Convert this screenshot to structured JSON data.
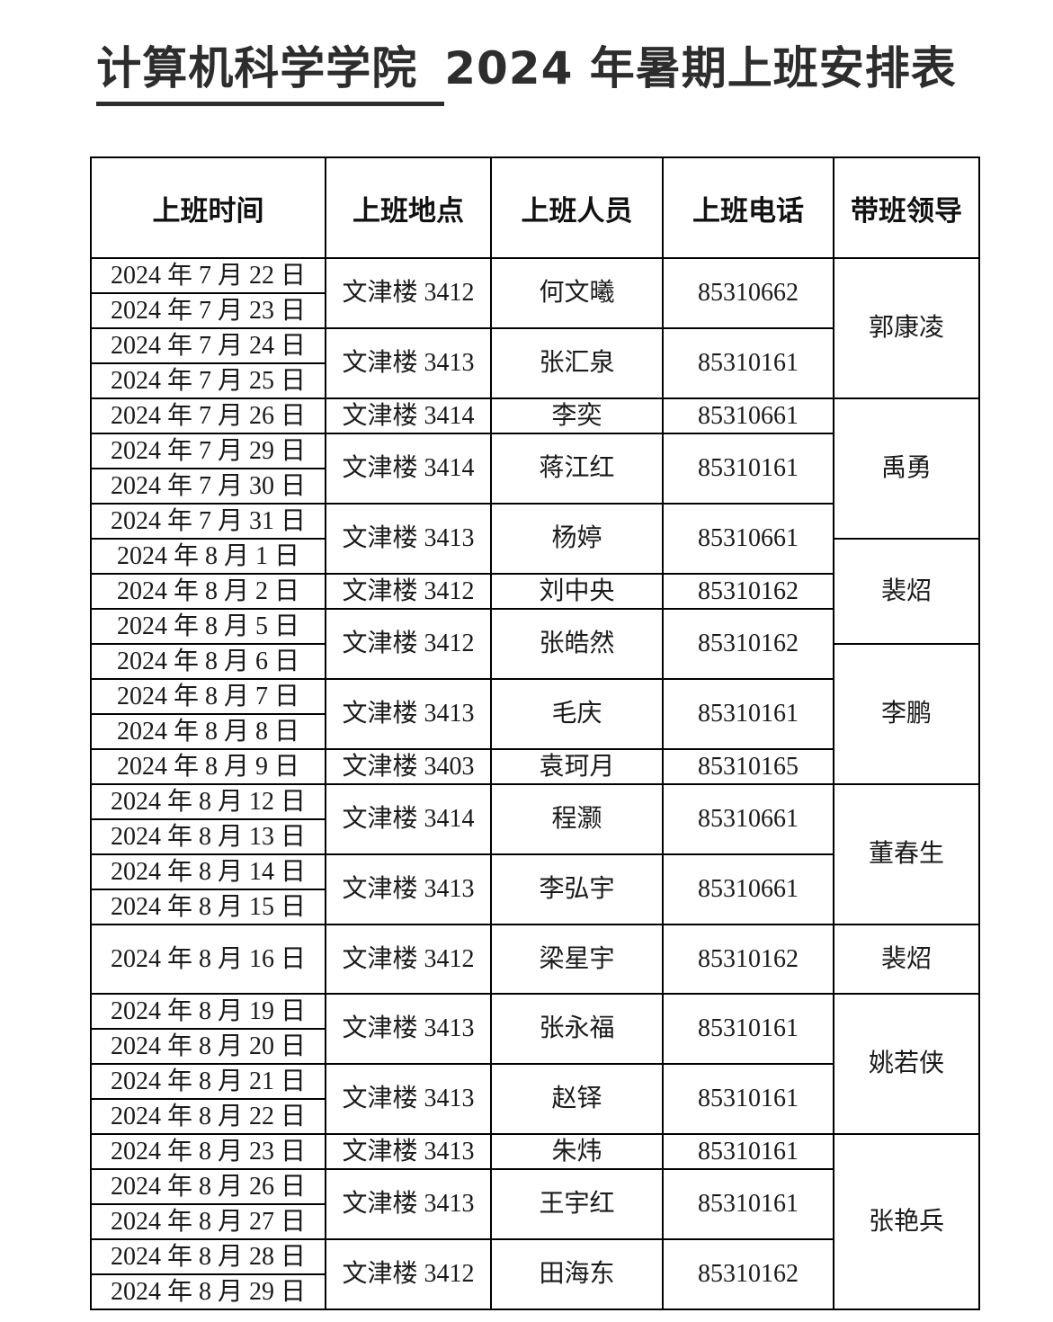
{
  "page": {
    "title_underlined": "计算机科学学院",
    "title_rest": "2024 年暑期上班安排表"
  },
  "table": {
    "columns": [
      "上班时间",
      "上班地点",
      "上班人员",
      "上班电话",
      "带班领导"
    ],
    "rows": [
      {
        "date": "2024 年 7 月 22 日",
        "duty": {
          "span": 2,
          "location": "文津楼 3412",
          "person": "何文曦",
          "phone": "85310662"
        },
        "leader": {
          "span": 4,
          "name": "郭康凌"
        }
      },
      {
        "date": "2024 年 7 月 23 日"
      },
      {
        "date": "2024 年 7 月 24 日",
        "duty": {
          "span": 2,
          "location": "文津楼 3413",
          "person": "张汇泉",
          "phone": "85310161"
        }
      },
      {
        "date": "2024 年 7 月 25 日"
      },
      {
        "date": "2024 年 7 月 26 日",
        "duty": {
          "span": 1,
          "location": "文津楼 3414",
          "person": "李奕",
          "phone": "85310661"
        },
        "leader": {
          "span": 4,
          "name": "禹勇"
        }
      },
      {
        "date": "2024 年 7 月 29 日",
        "duty": {
          "span": 2,
          "location": "文津楼 3414",
          "person": "蒋江红",
          "phone": "85310161"
        }
      },
      {
        "date": "2024 年 7 月 30 日"
      },
      {
        "date": "2024 年 7 月 31 日",
        "duty": {
          "span": 2,
          "location": "文津楼 3413",
          "person": "杨婷",
          "phone": "85310661"
        }
      },
      {
        "date": "2024 年 8 月 1 日",
        "leader": {
          "span": 3,
          "name": "裴炤"
        }
      },
      {
        "date": "2024 年 8 月 2 日",
        "duty": {
          "span": 1,
          "location": "文津楼 3412",
          "person": "刘中央",
          "phone": "85310162"
        }
      },
      {
        "date": "2024 年 8 月 5 日",
        "duty": {
          "span": 2,
          "location": "文津楼 3412",
          "person": "张皓然",
          "phone": "85310162"
        }
      },
      {
        "date": "2024 年 8 月 6 日",
        "leader": {
          "span": 4,
          "name": "李鹏"
        }
      },
      {
        "date": "2024 年 8 月 7 日",
        "duty": {
          "span": 2,
          "location": "文津楼 3413",
          "person": "毛庆",
          "phone": "85310161"
        }
      },
      {
        "date": "2024 年 8 月 8 日"
      },
      {
        "date": "2024 年 8 月 9 日",
        "duty": {
          "span": 1,
          "location": "文津楼 3403",
          "person": "袁珂月",
          "phone": "85310165"
        }
      },
      {
        "date": "2024 年 8 月 12 日",
        "duty": {
          "span": 2,
          "location": "文津楼 3414",
          "person": "程灏",
          "phone": "85310661"
        },
        "leader": {
          "span": 4,
          "name": "董春生"
        }
      },
      {
        "date": "2024 年 8 月 13 日"
      },
      {
        "date": "2024 年 8 月 14 日",
        "duty": {
          "span": 2,
          "location": "文津楼 3413",
          "person": "李弘宇",
          "phone": "85310661"
        }
      },
      {
        "date": "2024 年 8 月 15 日"
      },
      {
        "date": "2024 年 8 月 16 日",
        "tall": true,
        "duty": {
          "span": 1,
          "location": "文津楼 3412",
          "person": "梁星宇",
          "phone": "85310162"
        },
        "leader": {
          "span": 1,
          "name": "裴炤"
        }
      },
      {
        "date": "2024 年 8 月 19 日",
        "duty": {
          "span": 2,
          "location": "文津楼 3413",
          "person": "张永福",
          "phone": "85310161"
        },
        "leader": {
          "span": 4,
          "name": "姚若侠"
        }
      },
      {
        "date": "2024 年 8 月 20 日"
      },
      {
        "date": "2024 年 8 月 21 日",
        "duty": {
          "span": 2,
          "location": "文津楼 3413",
          "person": "赵铎",
          "phone": "85310161"
        }
      },
      {
        "date": "2024 年 8 月 22 日"
      },
      {
        "date": "2024 年 8 月 23 日",
        "duty": {
          "span": 1,
          "location": "文津楼 3413",
          "person": "朱炜",
          "phone": "85310161"
        },
        "leader": {
          "span": 5,
          "name": "张艳兵"
        }
      },
      {
        "date": "2024 年 8 月 26 日",
        "duty": {
          "span": 2,
          "location": "文津楼 3413",
          "person": "王宇红",
          "phone": "85310161"
        }
      },
      {
        "date": "2024 年 8 月 27 日"
      },
      {
        "date": "2024 年 8 月 28 日",
        "duty": {
          "span": 2,
          "location": "文津楼 3412",
          "person": "田海东",
          "phone": "85310162"
        }
      },
      {
        "date": "2024 年 8 月 29 日"
      }
    ]
  }
}
